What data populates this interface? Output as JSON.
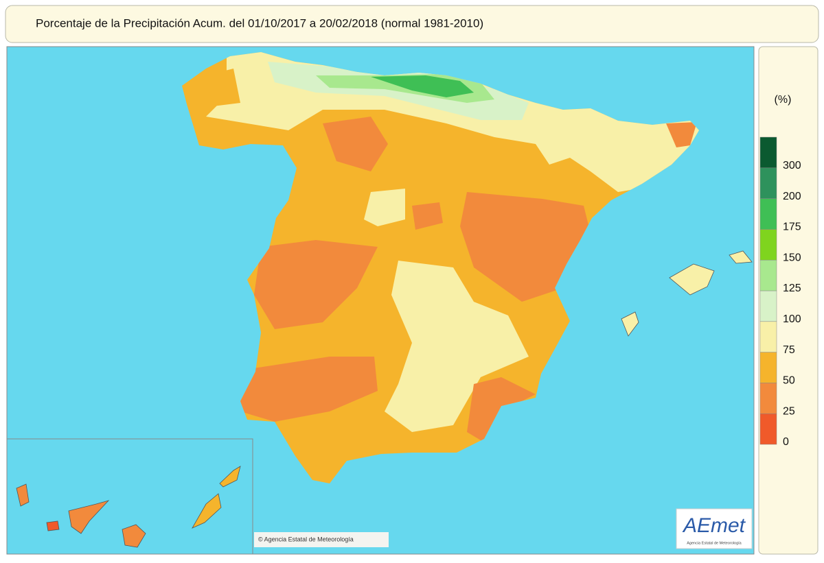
{
  "title": "Porcentaje de la Precipitación Acum. del 01/10/2017 a  20/02/2018  (normal 1981-2010)",
  "legend": {
    "title": "(%)",
    "ticks": [
      0,
      25,
      50,
      75,
      100,
      125,
      150,
      175,
      200,
      300
    ],
    "colors": [
      "#f05a2a",
      "#f28a3c",
      "#f5b42c",
      "#f8f0a8",
      "#d8f2c8",
      "#a8e88e",
      "#7fd41e",
      "#3fbf55",
      "#2e925c",
      "#0b5a30"
    ]
  },
  "credit": "© Agencia Estatal de Meteorología",
  "logo": {
    "name": "AEmet",
    "subtitle": "Agencia Estatal de Meteorología"
  }
}
